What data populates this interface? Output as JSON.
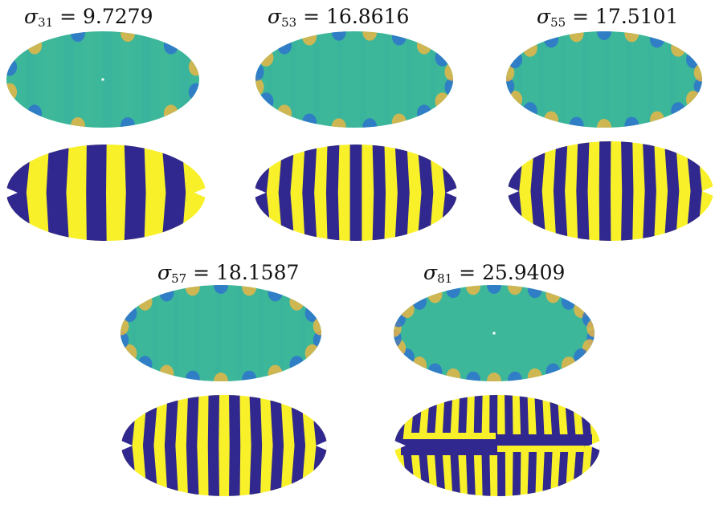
{
  "panels": [
    {
      "id": "p31",
      "symbol": "σ",
      "subscript": "31",
      "equals": "=",
      "value": "9.7279",
      "stripes": 10,
      "edgeWaves": 12,
      "interiorTint": 0.1,
      "centerDot": true,
      "split": false
    },
    {
      "id": "p53",
      "symbol": "σ",
      "subscript": "53",
      "equals": "=",
      "value": "16.8616",
      "stripes": 17,
      "edgeWaves": 20,
      "interiorTint": 0.05,
      "centerDot": false,
      "split": false
    },
    {
      "id": "p55",
      "symbol": "σ",
      "subscript": "55",
      "equals": "=",
      "value": "17.5101",
      "stripes": 18,
      "edgeWaves": 22,
      "interiorTint": 0.05,
      "centerDot": false,
      "split": false
    },
    {
      "id": "p57",
      "symbol": "σ",
      "subscript": "57",
      "equals": "=",
      "value": "18.1587",
      "stripes": 19,
      "edgeWaves": 22,
      "interiorTint": 0.05,
      "centerDot": false,
      "split": false
    },
    {
      "id": "p81",
      "symbol": "σ",
      "subscript": "81",
      "equals": "=",
      "value": "25.9409",
      "stripes": 26,
      "edgeWaves": 30,
      "interiorTint": 0.0,
      "centerDot": true,
      "split": true
    }
  ],
  "colors": {
    "base": "#3cb79a",
    "edge_blue": "#2d6fd0",
    "edge_orange": "#f2b640",
    "stripe_yellow": "#f8f12a",
    "stripe_navy": "#30288f",
    "background": "#ffffff"
  }
}
